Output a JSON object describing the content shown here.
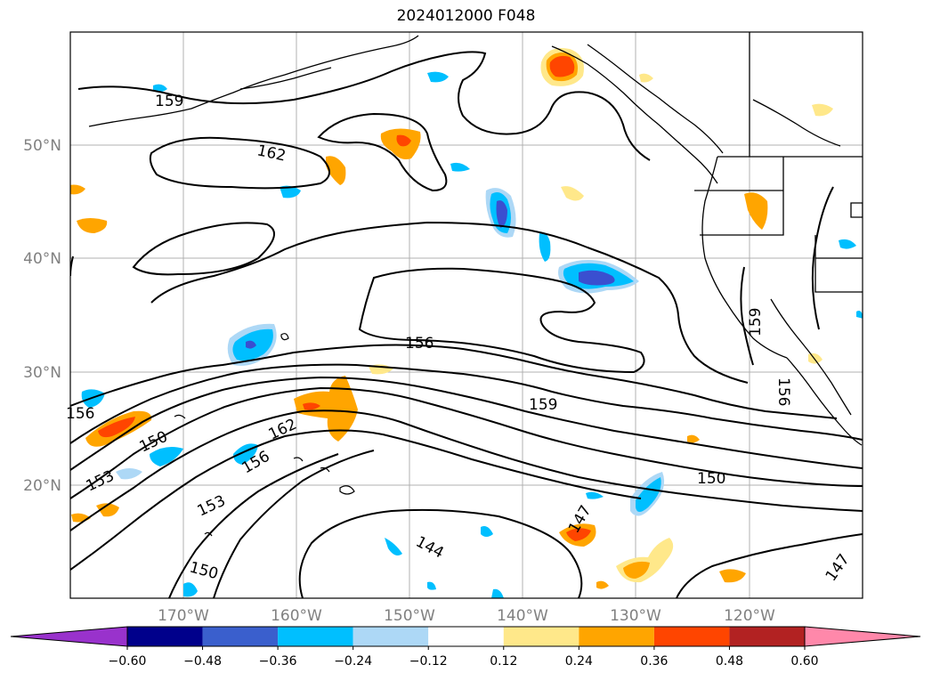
{
  "title": "2024012000 F048",
  "lat_labels": [
    "50°N",
    "40°N",
    "30°N",
    "20°N"
  ],
  "lon_labels": [
    "170°W",
    "160°W",
    "150°W",
    "140°W",
    "130°W",
    "120°W"
  ],
  "contour_labels": [
    "159",
    "162",
    "156",
    "159",
    "150",
    "153",
    "162",
    "156",
    "153",
    "150",
    "144",
    "147",
    "150",
    "156",
    "159",
    "156",
    "147"
  ],
  "colorbar": {
    "ticks": [
      "−0.60",
      "−0.48",
      "−0.36",
      "−0.24",
      "−0.12",
      "0.12",
      "0.24",
      "0.36",
      "0.48",
      "0.60"
    ],
    "colors": [
      "#9932cc",
      "#00008b",
      "#3a5fcd",
      "#00bfff",
      "#add8f6",
      "#ffffff",
      "#ffe88a",
      "#ffa500",
      "#ff4500",
      "#b22222",
      "#ff88aa"
    ]
  },
  "anomaly_colors": {
    "neg_strong": "#3a4fd0",
    "neg_mid": "#00bfff",
    "neg_weak": "#add8f6",
    "pos_weak": "#ffe88a",
    "pos_mid": "#ffa500",
    "pos_strong": "#ff4500"
  }
}
